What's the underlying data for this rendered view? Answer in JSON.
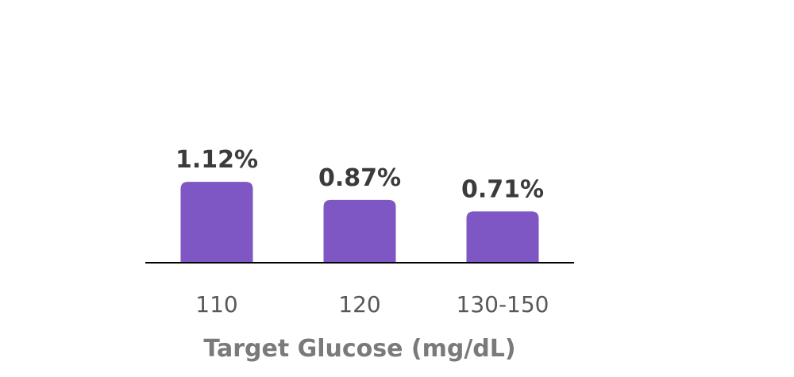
{
  "chart_data": {
    "type": "bar",
    "categories": [
      "110",
      "120",
      "130-150"
    ],
    "values": [
      1.12,
      0.87,
      0.71
    ],
    "value_labels": [
      "1.12%",
      "0.87%",
      "0.71%"
    ],
    "title": "",
    "xlabel": "Target Glucose (mg/dL)",
    "ylabel": "",
    "ylim": [
      0,
      1.2
    ],
    "grid": false,
    "legend": "none",
    "bar_color": "#7E57C5",
    "axis_color": "#000000"
  }
}
